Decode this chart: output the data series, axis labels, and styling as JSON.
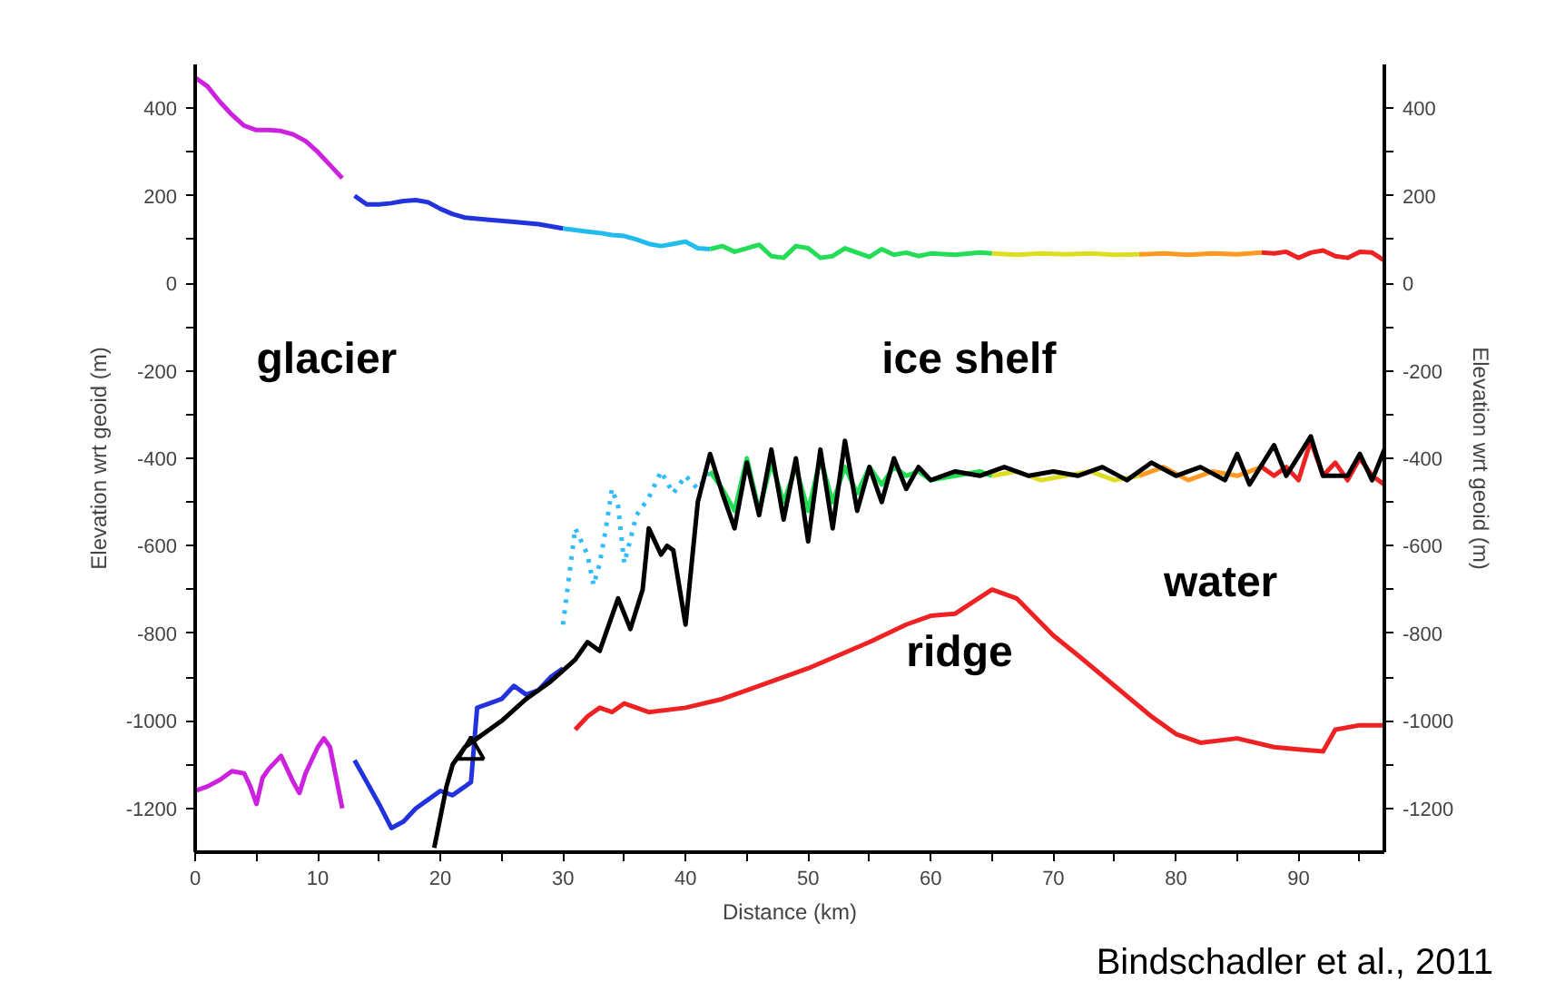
{
  "chart_data": {
    "type": "line",
    "xlabel": "Distance (km)",
    "ylabel": "Elevation wrt geoid (m)",
    "y2label": "Elevation wrt geoid (m)",
    "xlim": [
      0,
      97
    ],
    "xticks": [
      0,
      {
        "value": 5,
        "label": null
      },
      10,
      {
        "value": 15,
        "label": null
      },
      20,
      {
        "value": 25,
        "label": null
      },
      30,
      {
        "value": 35,
        "label": null
      },
      40,
      {
        "value": 45,
        "label": null
      },
      50,
      {
        "value": 55,
        "label": null
      },
      60,
      {
        "value": 65,
        "label": null
      },
      70,
      {
        "value": 75,
        "label": null
      },
      80,
      {
        "value": 85,
        "label": null
      },
      90,
      {
        "value": 95,
        "label": null
      }
    ],
    "ylim": [
      -1300,
      500
    ],
    "yticks": [
      -1200,
      {
        "value": -1100,
        "label": null
      },
      -1000,
      {
        "value": -900,
        "label": null
      },
      -800,
      {
        "value": -700,
        "label": null
      },
      -600,
      {
        "value": -500,
        "label": null
      },
      -400,
      {
        "value": -300,
        "label": null
      },
      -200,
      {
        "value": -100,
        "label": null
      },
      0,
      {
        "value": 100,
        "label": null
      },
      200,
      {
        "value": 300,
        "label": null
      },
      400
    ],
    "y2lim": [
      -1300,
      500
    ],
    "y2ticks": [
      -1200,
      {
        "value": -1100,
        "label": null
      },
      -1000,
      {
        "value": -900,
        "label": null
      },
      -800,
      {
        "value": -700,
        "label": null
      },
      -600,
      {
        "value": -500,
        "label": null
      },
      -400,
      {
        "value": -300,
        "label": null
      },
      -200,
      {
        "value": -100,
        "label": null
      },
      0,
      {
        "value": 100,
        "label": null
      },
      200,
      {
        "value": 300,
        "label": null
      },
      400
    ],
    "grid": false,
    "marker": "none",
    "line_style": "solid",
    "series": [
      {
        "color": "#cc22dd",
        "x": [
          0,
          1,
          2,
          3,
          4,
          5,
          6,
          7,
          8,
          9,
          10,
          11,
          12
        ],
        "values": [
          470,
          450,
          415,
          385,
          360,
          350,
          350,
          348,
          340,
          325,
          300,
          270,
          240
        ]
      },
      {
        "color": "#2233dd",
        "x": [
          13,
          14,
          15,
          16,
          17,
          18,
          19,
          20,
          21,
          22,
          24,
          26,
          28,
          30
        ],
        "values": [
          200,
          180,
          180,
          183,
          188,
          190,
          185,
          170,
          158,
          150,
          145,
          140,
          135,
          125
        ]
      },
      {
        "color": "#22bbee",
        "x": [
          30,
          32,
          33,
          34,
          35,
          36,
          37,
          38,
          39,
          40,
          41,
          42
        ],
        "values": [
          125,
          118,
          115,
          110,
          108,
          100,
          90,
          85,
          90,
          95,
          80,
          78
        ]
      },
      {
        "color": "#22dd55",
        "x": [
          42,
          43,
          44,
          45,
          46,
          47,
          48,
          49,
          50,
          51,
          52,
          53,
          54,
          55,
          56,
          57,
          58,
          59,
          60,
          62,
          64,
          65
        ],
        "values": [
          78,
          85,
          72,
          80,
          88,
          62,
          58,
          85,
          80,
          58,
          62,
          80,
          70,
          60,
          78,
          65,
          70,
          62,
          68,
          65,
          70,
          68
        ]
      },
      {
        "color": "#dddd22",
        "x": [
          65,
          67,
          69,
          71,
          73,
          75,
          77
        ],
        "values": [
          68,
          65,
          68,
          66,
          68,
          65,
          66
        ]
      },
      {
        "color": "#ff9922",
        "x": [
          77,
          79,
          81,
          83,
          85,
          87
        ],
        "values": [
          66,
          68,
          65,
          68,
          66,
          70
        ]
      },
      {
        "color": "#ee2222",
        "x": [
          87,
          88,
          89,
          90,
          91,
          92,
          93,
          94,
          95,
          96,
          97
        ],
        "values": [
          70,
          68,
          72,
          58,
          70,
          75,
          62,
          58,
          72,
          70,
          52
        ]
      },
      {
        "color": "#cc22dd",
        "x": [
          0,
          1,
          2,
          3,
          4,
          4.5,
          5,
          5.5,
          6,
          7,
          8,
          8.5,
          9,
          10,
          10.5,
          11,
          12
        ],
        "values": [
          -1160,
          -1150,
          -1135,
          -1115,
          -1120,
          -1150,
          -1190,
          -1130,
          -1110,
          -1080,
          -1140,
          -1165,
          -1120,
          -1060,
          -1040,
          -1060,
          -1200
        ]
      },
      {
        "color": "#2233dd",
        "x": [
          13,
          14,
          15,
          16,
          17,
          18,
          19,
          20,
          21,
          22,
          22.5,
          23,
          24,
          25,
          26,
          27,
          28,
          29,
          30
        ],
        "values": [
          -1090,
          -1140,
          -1190,
          -1245,
          -1230,
          -1200,
          -1180,
          -1160,
          -1170,
          -1150,
          -1140,
          -970,
          -960,
          -950,
          -920,
          -940,
          -930,
          -900,
          -880
        ]
      },
      {
        "color": "#33bbff",
        "line_style": "dotted",
        "x": [
          30,
          31,
          31.5,
          32,
          32.5,
          33,
          33.5,
          34,
          34.5,
          35,
          36,
          37,
          38,
          39,
          40,
          41,
          42
        ],
        "values": [
          -780,
          -560,
          -590,
          -620,
          -690,
          -640,
          -560,
          -470,
          -510,
          -640,
          -530,
          -490,
          -430,
          -480,
          -440,
          -470,
          -430
        ]
      },
      {
        "color": "#22dd55",
        "x": [
          42,
          43,
          44,
          45,
          46,
          47,
          48,
          49,
          50,
          51,
          52,
          53,
          54,
          55,
          56,
          57,
          58,
          59,
          60,
          62,
          64,
          65
        ],
        "values": [
          -430,
          -470,
          -520,
          -400,
          -520,
          -410,
          -500,
          -420,
          -520,
          -400,
          -500,
          -420,
          -480,
          -420,
          -460,
          -420,
          -440,
          -430,
          -450,
          -440,
          -430,
          -440
        ]
      },
      {
        "color": "#dddd22",
        "x": [
          65,
          67,
          69,
          71,
          73,
          75,
          77
        ],
        "values": [
          -440,
          -430,
          -450,
          -440,
          -430,
          -450,
          -440
        ]
      },
      {
        "color": "#ff9922",
        "x": [
          77,
          79,
          81,
          83,
          85,
          87
        ],
        "values": [
          -440,
          -420,
          -450,
          -430,
          -440,
          -420
        ]
      },
      {
        "color": "#ee2222",
        "x": [
          87,
          88,
          89,
          90,
          91,
          92,
          93,
          94,
          95,
          96,
          97
        ],
        "values": [
          -420,
          -440,
          -420,
          -450,
          -360,
          -440,
          -410,
          -450,
          -400,
          -440,
          -460
        ]
      },
      {
        "color": "#000000",
        "x": [
          19.5,
          20.5,
          21,
          22,
          23,
          25,
          27,
          29,
          31,
          32,
          33,
          34,
          34.5,
          35.5,
          36.5,
          37,
          38,
          38.5,
          39,
          40,
          41,
          42,
          43,
          44,
          45,
          46,
          47,
          48,
          49,
          50,
          51,
          52,
          53,
          54,
          55,
          56,
          57,
          58,
          59,
          60,
          62,
          64,
          66,
          68,
          70,
          72,
          74,
          76,
          78,
          80,
          82,
          84,
          85,
          86,
          88,
          89,
          91,
          92,
          94,
          95,
          96,
          97
        ],
        "values": [
          -1290,
          -1150,
          -1100,
          -1060,
          -1040,
          -1000,
          -950,
          -910,
          -860,
          -820,
          -840,
          -760,
          -720,
          -790,
          -700,
          -560,
          -620,
          -600,
          -610,
          -780,
          -500,
          -390,
          -480,
          -560,
          -410,
          -530,
          -380,
          -540,
          -400,
          -590,
          -380,
          -560,
          -360,
          -520,
          -420,
          -500,
          -400,
          -470,
          -420,
          -450,
          -430,
          -440,
          -420,
          -440,
          -430,
          -440,
          -420,
          -450,
          -410,
          -440,
          -420,
          -450,
          -390,
          -460,
          -370,
          -440,
          -350,
          -440,
          -440,
          -390,
          -450,
          -380
        ]
      },
      {
        "color": "#ee2222",
        "x": [
          31,
          32,
          33,
          34,
          35,
          37,
          40,
          43,
          45,
          50,
          55,
          58,
          60,
          62,
          65,
          67,
          70,
          72,
          75,
          78,
          80,
          82,
          85,
          88,
          90,
          92,
          93,
          95,
          97
        ],
        "values": [
          -1020,
          -990,
          -970,
          -980,
          -960,
          -980,
          -970,
          -950,
          -930,
          -880,
          -820,
          -780,
          -760,
          -755,
          -700,
          -720,
          -805,
          -850,
          -920,
          -990,
          -1030,
          -1050,
          -1040,
          -1060,
          -1065,
          -1070,
          -1020,
          -1010,
          -1010
        ]
      },
      {
        "type": "scatter",
        "marker": "triangle",
        "color": "#000000",
        "x": [
          22.5
        ],
        "values": [
          -1070
        ]
      }
    ],
    "annotations": [
      "glacier",
      "ice shelf",
      "ridge",
      "water",
      "Bindschadler et al., 2011"
    ]
  }
}
